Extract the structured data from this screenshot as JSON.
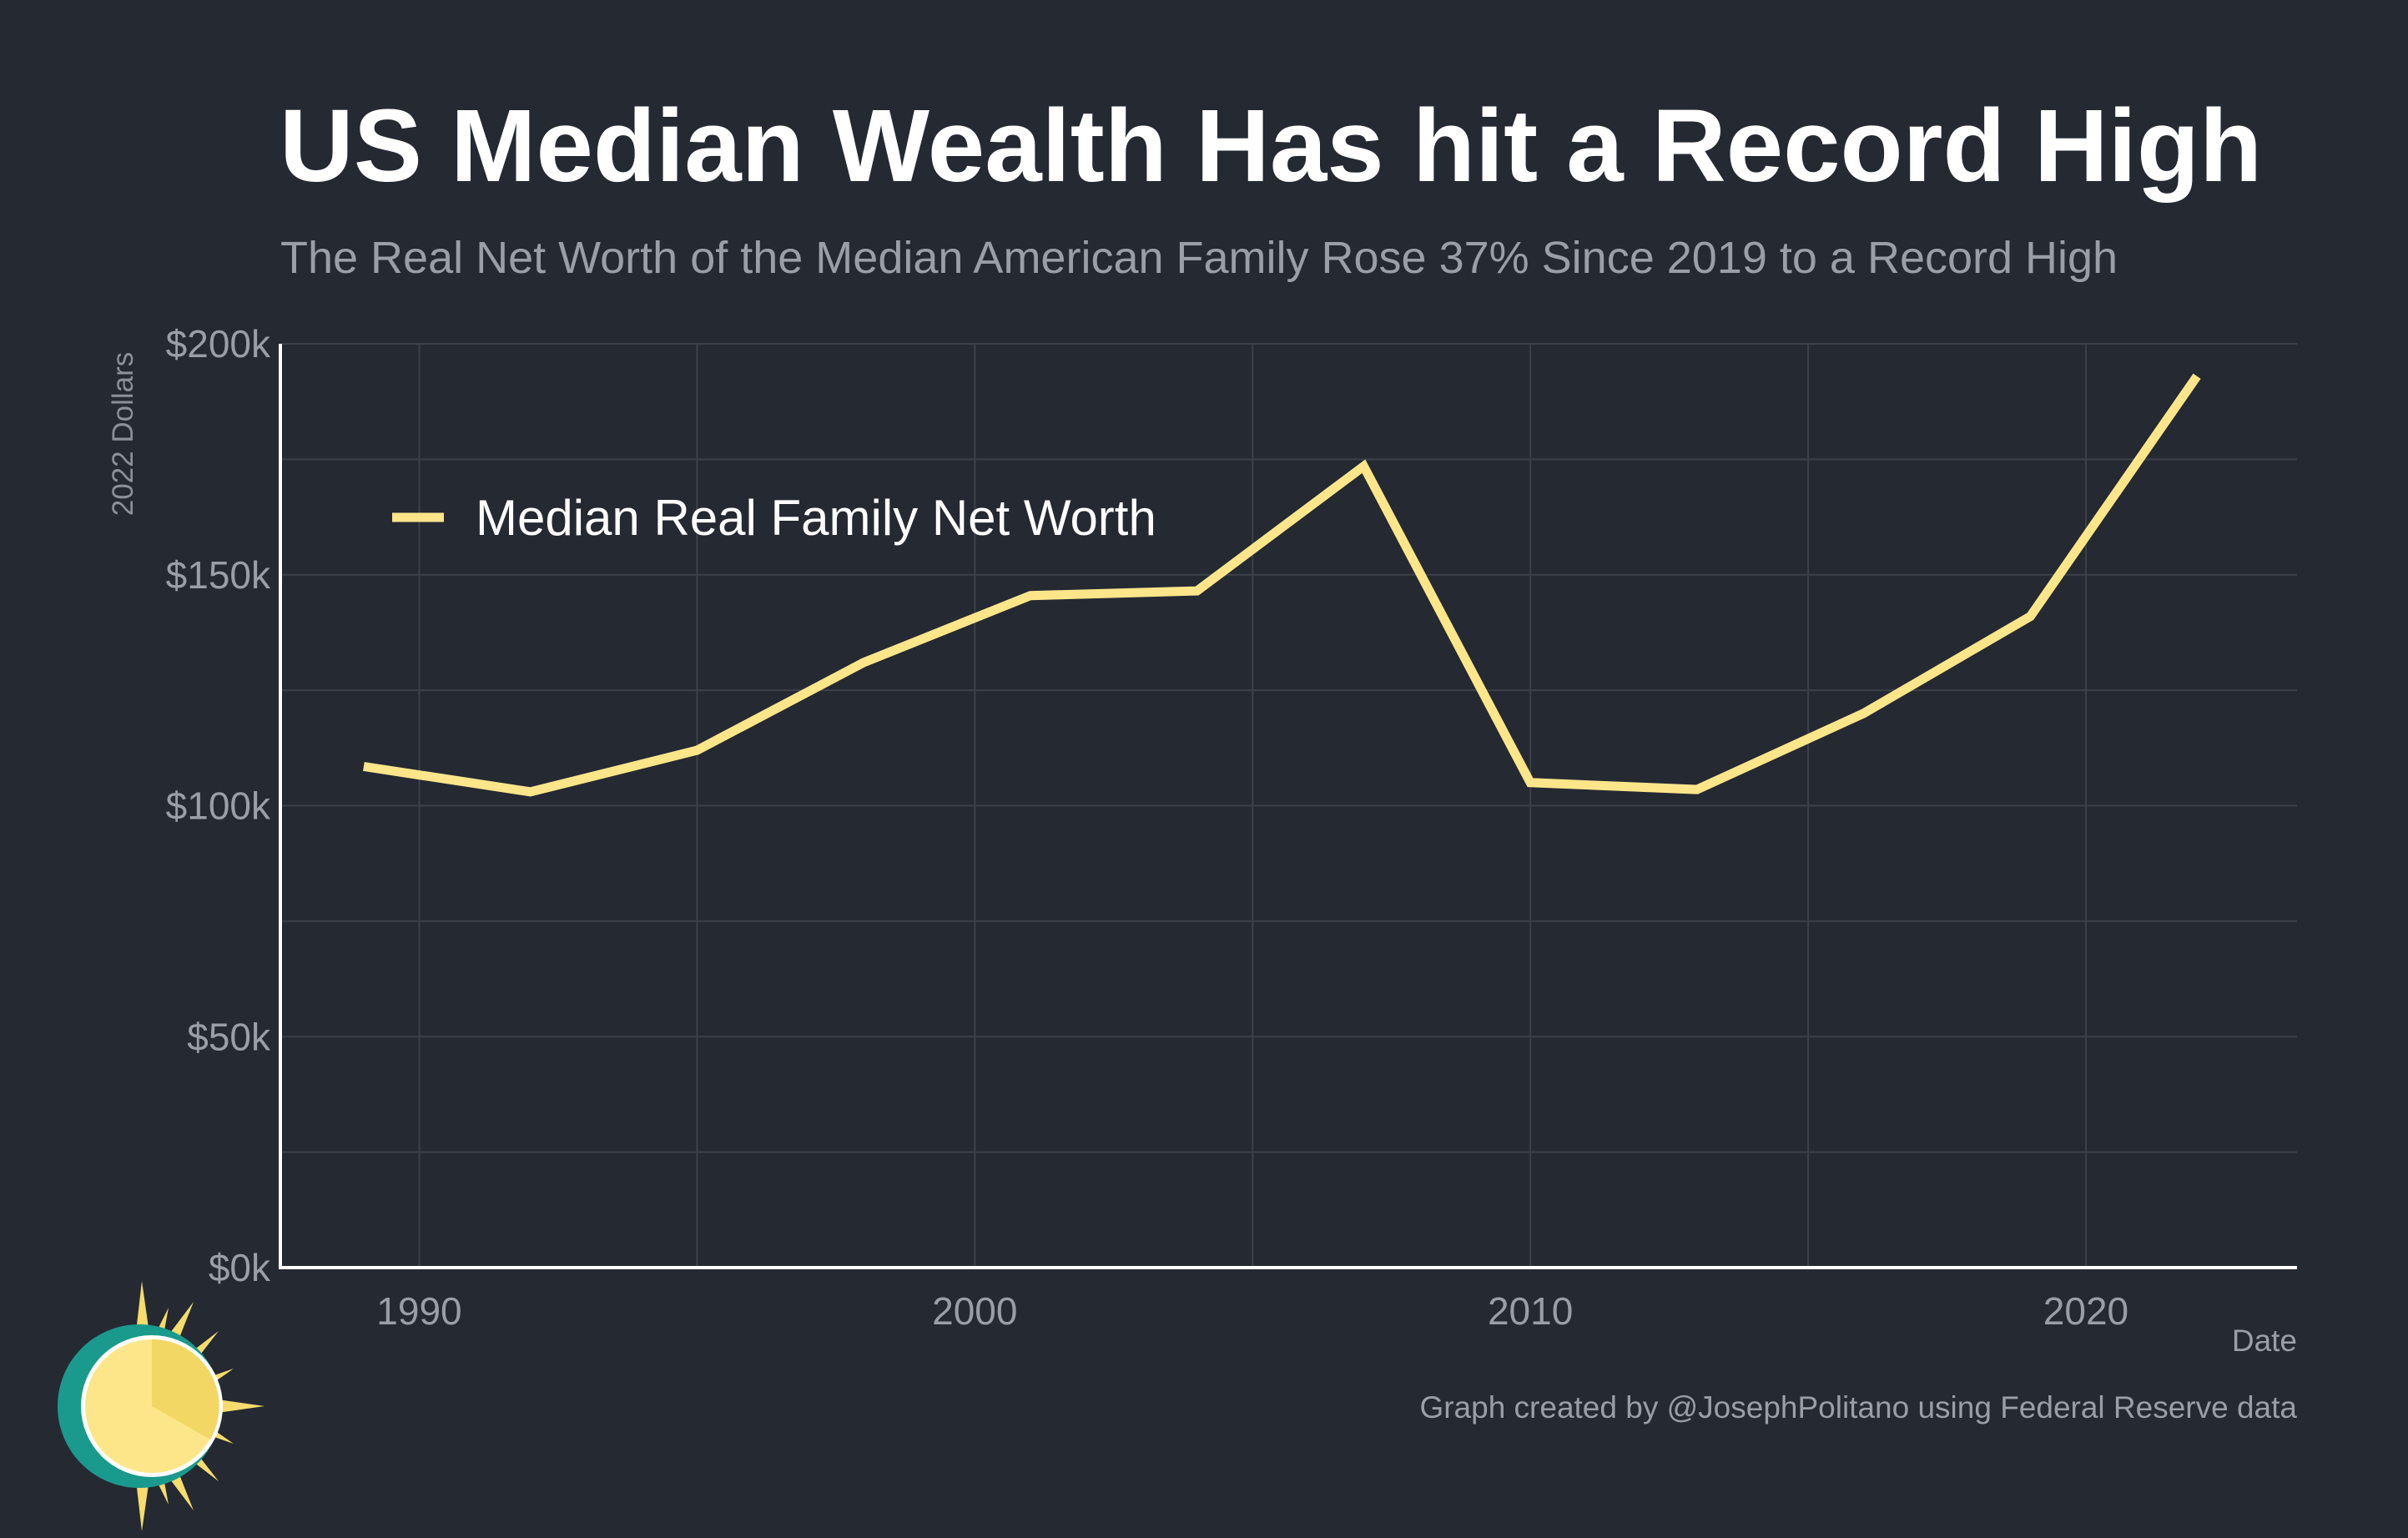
{
  "title": "US Median Wealth Has hit a Record High",
  "subtitle": "The Real Net Worth of the Median American Family Rose 37% Since 2019 to a Record High",
  "caption": "Graph created by @JosephPolitano using Federal Reserve data",
  "colors": {
    "background": "#252932",
    "line": "#fde68a",
    "grid": "#3c404a",
    "axis": "#ffffff",
    "text_muted": "#9a9ea6"
  },
  "chart_data": {
    "type": "line",
    "title": "US Median Wealth Has hit a Record High",
    "xlabel": "Date",
    "ylabel": "2022 Dollars",
    "xlim": [
      1987.5,
      2023.8
    ],
    "ylim": [
      0,
      200000
    ],
    "x_ticks": [
      1990,
      2000,
      2010,
      2020
    ],
    "x_tick_labels": [
      "1990",
      "2000",
      "2010",
      "2020"
    ],
    "y_ticks": [
      0,
      50000,
      100000,
      150000,
      200000
    ],
    "y_tick_labels": [
      "$0k",
      "$50k",
      "$100k",
      "$150k",
      "$200k"
    ],
    "grid": true,
    "legend_position": "top-left",
    "series": [
      {
        "name": "Median Real Family Net Worth",
        "color": "#fde68a",
        "x": [
          1989,
          1992,
          1995,
          1998,
          2001,
          2004,
          2007,
          2010,
          2013,
          2016,
          2019,
          2022
        ],
        "y": [
          108500,
          103000,
          112000,
          131000,
          145500,
          146500,
          173500,
          105000,
          103500,
          120000,
          141000,
          193000
        ]
      }
    ]
  }
}
